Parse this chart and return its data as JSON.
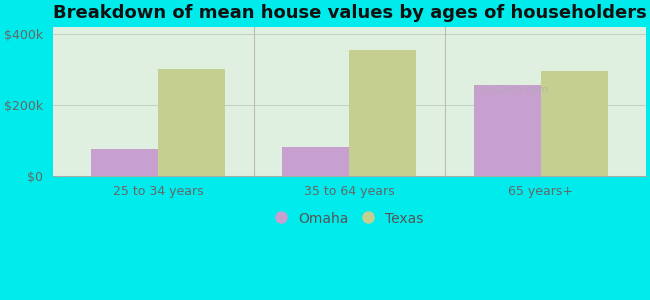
{
  "title": "Breakdown of mean house values by ages of householders",
  "categories": [
    "25 to 34 years",
    "35 to 64 years",
    "65 years+"
  ],
  "omaha_values": [
    75000,
    80000,
    255000
  ],
  "texas_values": [
    300000,
    355000,
    295000
  ],
  "omaha_color": "#c8a0d0",
  "texas_color": "#c5d090",
  "background_color": "#00ecec",
  "plot_bg_color": "#e0f0e0",
  "ylim": [
    0,
    420000
  ],
  "yticks": [
    0,
    200000,
    400000
  ],
  "ytick_labels": [
    "$0",
    "$200k",
    "$400k"
  ],
  "bar_width": 0.35,
  "legend_labels": [
    "Omaha",
    "Texas"
  ],
  "title_fontsize": 13,
  "tick_fontsize": 9,
  "legend_fontsize": 10
}
